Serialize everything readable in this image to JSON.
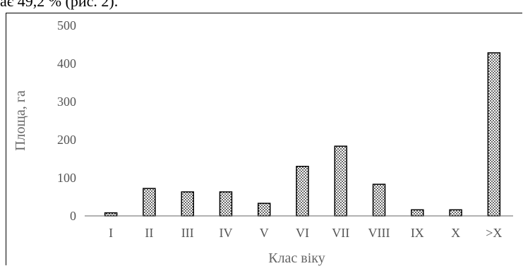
{
  "caption_fragment": "ає 49,2 % (рис. 2).",
  "chart_data": {
    "type": "bar",
    "categories": [
      "I",
      "II",
      "III",
      "IV",
      "V",
      "VI",
      "VII",
      "VIII",
      "IX",
      "X",
      ">X"
    ],
    "values": [
      8,
      72,
      63,
      63,
      33,
      130,
      183,
      83,
      16,
      16,
      428
    ],
    "xlabel": "Клас віку",
    "ylabel": "Площа, га",
    "ylim": [
      0,
      500
    ],
    "yticks": [
      0,
      100,
      200,
      300,
      400,
      500
    ],
    "grid": false,
    "bar_fill": "dotted",
    "bar_color": "#000000"
  }
}
